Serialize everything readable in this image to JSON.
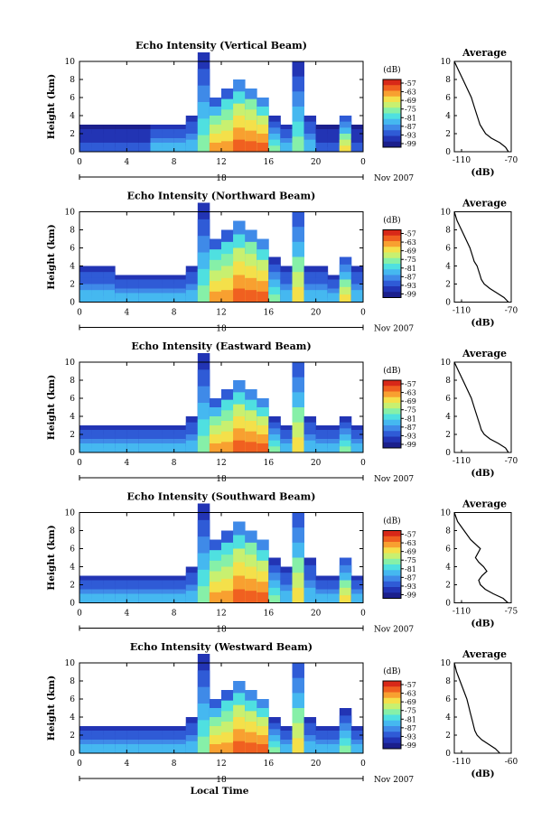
{
  "figure": {
    "bottom_xlabel": "Local Time"
  },
  "colorscale": [
    "#1b1f8c",
    "#2234b4",
    "#2f5bd6",
    "#3f8ae8",
    "#45b8f0",
    "#4fe0e0",
    "#86f0a8",
    "#c8f070",
    "#f4e04a",
    "#f8a030",
    "#f06020",
    "#d82818"
  ],
  "chart_data": [
    {
      "type": "heatmap",
      "title": "Echo Intensity (Vertical Beam)",
      "ylabel": "Height (km)",
      "ylim": [
        0,
        10
      ],
      "yticks": [
        "0",
        "2",
        "4",
        "6",
        "8",
        "10"
      ],
      "xlim": [
        0,
        24
      ],
      "xticks": [
        "0",
        "4",
        "8",
        "12",
        "16",
        "20",
        "0"
      ],
      "date_label": "18",
      "date_suffix": "Nov 2007",
      "colorbar": {
        "unit": "(dB)",
        "ticks": [
          "-57",
          "-63",
          "-69",
          "-75",
          "-81",
          "-87",
          "-93",
          "-99"
        ]
      },
      "cells": [
        [
          0,
          3,
          1
        ],
        [
          1,
          3,
          1
        ],
        [
          2,
          3,
          1
        ],
        [
          3,
          3,
          1
        ],
        [
          4,
          3,
          1
        ],
        [
          5,
          3,
          1
        ],
        [
          6,
          3,
          2
        ],
        [
          7,
          3,
          2
        ],
        [
          8,
          3,
          2
        ],
        [
          9,
          4,
          2
        ],
        [
          10,
          11,
          3
        ],
        [
          11,
          6,
          5
        ],
        [
          12,
          7,
          6
        ],
        [
          13,
          8,
          7
        ],
        [
          14,
          7,
          8
        ],
        [
          15,
          6,
          7
        ],
        [
          16,
          4,
          3
        ],
        [
          17,
          3,
          2
        ],
        [
          18,
          10,
          3
        ],
        [
          19,
          4,
          2
        ],
        [
          20,
          3,
          1
        ],
        [
          21,
          3,
          1
        ],
        [
          22,
          4,
          4
        ],
        [
          23,
          3,
          1
        ]
      ],
      "profile": {
        "title": "Average",
        "xlabel": "(dB)",
        "xticks": [
          "-110",
          "-70"
        ],
        "xlim": [
          -110,
          -70
        ],
        "ylim": [
          0,
          10
        ],
        "yticks": [
          "0",
          "2",
          "4",
          "6",
          "8",
          "10"
        ],
        "x": [
          -72,
          -74,
          -78,
          -84,
          -88,
          -90,
          -92,
          -93,
          -94,
          -95,
          -96,
          -98,
          -101,
          -104,
          -107,
          -110
        ],
        "y": [
          0,
          0.5,
          1,
          1.5,
          2,
          2.5,
          3,
          3.5,
          4,
          4.5,
          5,
          6,
          7,
          8,
          9,
          10
        ]
      }
    },
    {
      "type": "heatmap",
      "title": "Echo Intensity (Northward Beam)",
      "ylabel": "Height (km)",
      "ylim": [
        0,
        10
      ],
      "yticks": [
        "0",
        "2",
        "4",
        "6",
        "8",
        "10"
      ],
      "xlim": [
        0,
        24
      ],
      "xticks": [
        "0",
        "4",
        "8",
        "12",
        "16",
        "20",
        "0"
      ],
      "date_label": "18",
      "date_suffix": "Nov 2007",
      "colorbar": {
        "unit": "(dB)",
        "ticks": [
          "-57",
          "-63",
          "-69",
          "-75",
          "-81",
          "-87",
          "-93",
          "-99"
        ]
      },
      "cells": [
        [
          0,
          4,
          2
        ],
        [
          1,
          4,
          2
        ],
        [
          2,
          4,
          2
        ],
        [
          3,
          3,
          2
        ],
        [
          4,
          3,
          2
        ],
        [
          5,
          3,
          2
        ],
        [
          6,
          3,
          2
        ],
        [
          7,
          3,
          2
        ],
        [
          8,
          3,
          2
        ],
        [
          9,
          4,
          2
        ],
        [
          10,
          11,
          3
        ],
        [
          11,
          7,
          6
        ],
        [
          12,
          8,
          6
        ],
        [
          13,
          9,
          7
        ],
        [
          14,
          8,
          8
        ],
        [
          15,
          7,
          7
        ],
        [
          16,
          5,
          3
        ],
        [
          17,
          4,
          2
        ],
        [
          18,
          10,
          4
        ],
        [
          19,
          4,
          2
        ],
        [
          20,
          4,
          2
        ],
        [
          21,
          3,
          2
        ],
        [
          22,
          5,
          4
        ],
        [
          23,
          4,
          2
        ]
      ],
      "profile": {
        "title": "Average",
        "xlabel": "(dB)",
        "xticks": [
          "-110",
          "-70"
        ],
        "xlim": [
          -110,
          -70
        ],
        "ylim": [
          0,
          10
        ],
        "yticks": [
          "0",
          "2",
          "4",
          "6",
          "8",
          "10"
        ],
        "x": [
          -72,
          -75,
          -80,
          -85,
          -89,
          -91,
          -92,
          -93,
          -94,
          -96,
          -97,
          -99,
          -102,
          -105,
          -108,
          -110
        ],
        "y": [
          0,
          0.5,
          1,
          1.5,
          2,
          2.5,
          3,
          3.5,
          4,
          4.5,
          5,
          6,
          7,
          8,
          9,
          10
        ]
      }
    },
    {
      "type": "heatmap",
      "title": "Echo Intensity (Eastward Beam)",
      "ylabel": "Height (km)",
      "ylim": [
        0,
        10
      ],
      "yticks": [
        "0",
        "2",
        "4",
        "6",
        "8",
        "10"
      ],
      "xlim": [
        0,
        24
      ],
      "xticks": [
        "0",
        "4",
        "8",
        "12",
        "16",
        "20",
        "0"
      ],
      "date_label": "18",
      "date_suffix": "Nov 2007",
      "colorbar": {
        "unit": "(dB)",
        "ticks": [
          "-57",
          "-63",
          "-69",
          "-75",
          "-81",
          "-87",
          "-93",
          "-99"
        ]
      },
      "cells": [
        [
          0,
          3,
          2
        ],
        [
          1,
          3,
          2
        ],
        [
          2,
          3,
          2
        ],
        [
          3,
          3,
          2
        ],
        [
          4,
          3,
          2
        ],
        [
          5,
          3,
          2
        ],
        [
          6,
          3,
          2
        ],
        [
          7,
          3,
          2
        ],
        [
          8,
          3,
          2
        ],
        [
          9,
          4,
          2
        ],
        [
          10,
          11,
          3
        ],
        [
          11,
          6,
          5
        ],
        [
          12,
          7,
          6
        ],
        [
          13,
          8,
          7
        ],
        [
          14,
          7,
          7
        ],
        [
          15,
          6,
          7
        ],
        [
          16,
          4,
          3
        ],
        [
          17,
          3,
          2
        ],
        [
          18,
          10,
          4
        ],
        [
          19,
          4,
          2
        ],
        [
          20,
          3,
          2
        ],
        [
          21,
          3,
          2
        ],
        [
          22,
          4,
          3
        ],
        [
          23,
          3,
          2
        ]
      ],
      "profile": {
        "title": "Average",
        "xlabel": "(dB)",
        "xticks": [
          "-110",
          "-70"
        ],
        "xlim": [
          -110,
          -70
        ],
        "ylim": [
          0,
          10
        ],
        "yticks": [
          "0",
          "2",
          "4",
          "6",
          "8",
          "10"
        ],
        "x": [
          -72,
          -74,
          -79,
          -85,
          -89,
          -91,
          -92,
          -93,
          -94,
          -95,
          -96,
          -98,
          -101,
          -104,
          -107,
          -110
        ],
        "y": [
          0,
          0.5,
          1,
          1.5,
          2,
          2.5,
          3,
          3.5,
          4,
          4.5,
          5,
          6,
          7,
          8,
          9,
          10
        ]
      }
    },
    {
      "type": "heatmap",
      "title": "Echo Intensity (Southward Beam)",
      "ylabel": "Height (km)",
      "ylim": [
        0,
        10
      ],
      "yticks": [
        "0",
        "2",
        "4",
        "6",
        "8",
        "10"
      ],
      "xlim": [
        0,
        24
      ],
      "xticks": [
        "0",
        "4",
        "8",
        "12",
        "16",
        "20",
        "0"
      ],
      "date_label": "18",
      "date_suffix": "Nov 2007",
      "colorbar": {
        "unit": "(dB)",
        "ticks": [
          "-57",
          "-63",
          "-69",
          "-75",
          "-81",
          "-87",
          "-93",
          "-99"
        ]
      },
      "cells": [
        [
          0,
          3,
          2
        ],
        [
          1,
          3,
          2
        ],
        [
          2,
          3,
          2
        ],
        [
          3,
          3,
          2
        ],
        [
          4,
          3,
          2
        ],
        [
          5,
          3,
          2
        ],
        [
          6,
          3,
          2
        ],
        [
          7,
          3,
          2
        ],
        [
          8,
          3,
          2
        ],
        [
          9,
          4,
          2
        ],
        [
          10,
          11,
          3
        ],
        [
          11,
          7,
          6
        ],
        [
          12,
          8,
          6
        ],
        [
          13,
          9,
          7
        ],
        [
          14,
          8,
          8
        ],
        [
          15,
          7,
          7
        ],
        [
          16,
          5,
          3
        ],
        [
          17,
          4,
          2
        ],
        [
          18,
          10,
          4
        ],
        [
          19,
          5,
          2
        ],
        [
          20,
          3,
          2
        ],
        [
          21,
          3,
          2
        ],
        [
          22,
          5,
          4
        ],
        [
          23,
          3,
          2
        ]
      ],
      "profile": {
        "title": "Average",
        "xlabel": "(dB)",
        "xticks": [
          "-110",
          "-75"
        ],
        "xlim": [
          -110,
          -75
        ],
        "ylim": [
          0,
          10
        ],
        "yticks": [
          "0",
          "2",
          "4",
          "6",
          "8",
          "10"
        ],
        "x": [
          -77,
          -80,
          -86,
          -91,
          -94,
          -95,
          -93,
          -90,
          -92,
          -95,
          -97,
          -94,
          -100,
          -104,
          -108,
          -110
        ],
        "y": [
          0,
          0.5,
          1,
          1.5,
          2,
          2.5,
          3,
          3.5,
          4,
          4.5,
          5,
          6,
          7,
          8,
          9,
          10
        ]
      }
    },
    {
      "type": "heatmap",
      "title": "Echo Intensity (Westward Beam)",
      "ylabel": "Height (km)",
      "ylim": [
        0,
        10
      ],
      "yticks": [
        "0",
        "2",
        "4",
        "6",
        "8",
        "10"
      ],
      "xlim": [
        0,
        24
      ],
      "xticks": [
        "0",
        "4",
        "8",
        "12",
        "16",
        "20",
        "0"
      ],
      "date_label": "18",
      "date_suffix": "Nov 2007",
      "colorbar": {
        "unit": "(dB)",
        "ticks": [
          "-57",
          "-63",
          "-69",
          "-75",
          "-81",
          "-87",
          "-93",
          "-99"
        ]
      },
      "cells": [
        [
          0,
          3,
          2
        ],
        [
          1,
          3,
          2
        ],
        [
          2,
          3,
          2
        ],
        [
          3,
          3,
          2
        ],
        [
          4,
          3,
          2
        ],
        [
          5,
          3,
          2
        ],
        [
          6,
          3,
          2
        ],
        [
          7,
          3,
          2
        ],
        [
          8,
          3,
          2
        ],
        [
          9,
          4,
          2
        ],
        [
          10,
          11,
          3
        ],
        [
          11,
          6,
          5
        ],
        [
          12,
          7,
          6
        ],
        [
          13,
          8,
          7
        ],
        [
          14,
          7,
          7
        ],
        [
          15,
          6,
          7
        ],
        [
          16,
          4,
          3
        ],
        [
          17,
          3,
          2
        ],
        [
          18,
          10,
          4
        ],
        [
          19,
          4,
          2
        ],
        [
          20,
          3,
          2
        ],
        [
          21,
          3,
          2
        ],
        [
          22,
          5,
          3
        ],
        [
          23,
          3,
          2
        ]
      ],
      "profile": {
        "title": "Average",
        "xlabel": "(dB)",
        "xticks": [
          "-110",
          "-60"
        ],
        "xlim": [
          -110,
          -60
        ],
        "ylim": [
          0,
          10
        ],
        "yticks": [
          "0",
          "2",
          "4",
          "6",
          "8",
          "10"
        ],
        "x": [
          -70,
          -74,
          -80,
          -86,
          -90,
          -92,
          -93,
          -94,
          -95,
          -96,
          -97,
          -99,
          -102,
          -105,
          -108,
          -110
        ],
        "y": [
          0,
          0.5,
          1,
          1.5,
          2,
          2.5,
          3,
          3.5,
          4,
          4.5,
          5,
          6,
          7,
          8,
          9,
          10
        ]
      }
    }
  ]
}
